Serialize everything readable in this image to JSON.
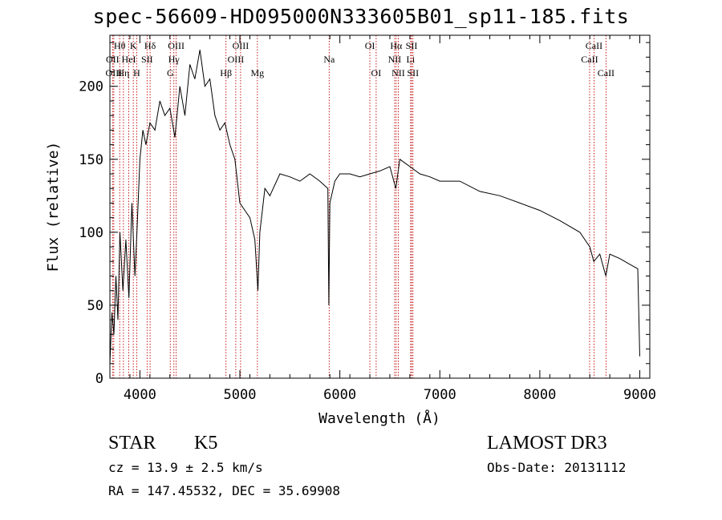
{
  "title": "spec-56609-HD095000N333605B01_sp11-185.fits",
  "info": {
    "class": "STAR",
    "subclass": "K5",
    "survey": "LAMOST DR3",
    "cz": "cz = 13.9 ± 2.5 km/s",
    "obs_date": "Obs-Date: 20131112",
    "radec": "RA = 147.45532, DEC =  35.69908"
  },
  "chart_data": {
    "type": "line",
    "title": "spec-56609-HD095000N333605B01_sp11-185.fits",
    "xlabel": "Wavelength (Å)",
    "ylabel": "Flux (relative)",
    "xlim": [
      3700,
      9100
    ],
    "ylim": [
      0,
      235
    ],
    "xticks": [
      4000,
      5000,
      6000,
      7000,
      8000,
      9000
    ],
    "yticks": [
      0,
      50,
      100,
      150,
      200
    ],
    "grid": false,
    "legend": "none",
    "series": [
      {
        "x": [
          3700,
          3720,
          3740,
          3760,
          3780,
          3800,
          3830,
          3860,
          3890,
          3920,
          3950,
          3970,
          4000,
          4030,
          4060,
          4100,
          4150,
          4200,
          4250,
          4300,
          4350,
          4400,
          4450,
          4500,
          4550,
          4600,
          4650,
          4700,
          4750,
          4800,
          4850,
          4900,
          4950,
          5000,
          5050,
          5100,
          5150,
          5180,
          5200,
          5250,
          5300,
          5400,
          5500,
          5600,
          5700,
          5800,
          5880,
          5890,
          5900,
          5950,
          6000,
          6100,
          6200,
          6300,
          6400,
          6500,
          6560,
          6600,
          6700,
          6800,
          6900,
          7000,
          7200,
          7400,
          7600,
          7800,
          8000,
          8200,
          8400,
          8500,
          8540,
          8600,
          8660,
          8700,
          8800,
          8900,
          8980,
          9000
        ],
        "values": [
          10,
          45,
          30,
          70,
          40,
          100,
          60,
          95,
          55,
          120,
          70,
          100,
          150,
          170,
          160,
          175,
          170,
          190,
          180,
          185,
          165,
          200,
          180,
          215,
          205,
          225,
          200,
          205,
          180,
          170,
          175,
          160,
          150,
          120,
          115,
          110,
          95,
          60,
          100,
          130,
          125,
          140,
          138,
          135,
          140,
          135,
          130,
          50,
          120,
          135,
          140,
          140,
          138,
          140,
          142,
          145,
          130,
          150,
          145,
          140,
          138,
          135,
          135,
          128,
          125,
          120,
          115,
          108,
          100,
          90,
          80,
          85,
          70,
          85,
          82,
          78,
          75,
          15
        ]
      }
    ],
    "annotations": [
      {
        "label": "Hθ",
        "x": 3798,
        "row": 1
      },
      {
        "label": "OII",
        "x": 3727,
        "row": 2
      },
      {
        "label": "OIII",
        "x": 3739,
        "row": 3
      },
      {
        "label": "K",
        "x": 3934,
        "row": 1
      },
      {
        "label": "HeI",
        "x": 3889,
        "row": 2
      },
      {
        "label": "Hη",
        "x": 3835,
        "row": 3
      },
      {
        "label": "Hδ",
        "x": 4102,
        "row": 1
      },
      {
        "label": "SII",
        "x": 4072,
        "row": 2
      },
      {
        "label": "H",
        "x": 3968,
        "row": 3
      },
      {
        "label": "OIII",
        "x": 4363,
        "row": 1
      },
      {
        "label": "Hγ",
        "x": 4340,
        "row": 2
      },
      {
        "label": "G",
        "x": 4304,
        "row": 3
      },
      {
        "label": "OIII",
        "x": 5007,
        "row": 1
      },
      {
        "label": "OIII",
        "x": 4959,
        "row": 2
      },
      {
        "label": "Hβ",
        "x": 4861,
        "row": 3
      },
      {
        "label": "Mg",
        "x": 5175,
        "row": 3
      },
      {
        "label": "Na",
        "x": 5893,
        "row": 2
      },
      {
        "label": "OI",
        "x": 6300,
        "row": 1
      },
      {
        "label": "OI",
        "x": 6363,
        "row": 3
      },
      {
        "label": "Hα",
        "x": 6563,
        "row": 1
      },
      {
        "label": "NII",
        "x": 6548,
        "row": 2
      },
      {
        "label": "NII",
        "x": 6584,
        "row": 3
      },
      {
        "label": "SII",
        "x": 6717,
        "row": 1
      },
      {
        "label": "Li",
        "x": 6708,
        "row": 2
      },
      {
        "label": "SII",
        "x": 6731,
        "row": 3
      },
      {
        "label": "CaII",
        "x": 8542,
        "row": 1
      },
      {
        "label": "CaII",
        "x": 8498,
        "row": 2
      },
      {
        "label": "CaII",
        "x": 8662,
        "row": 3
      }
    ]
  }
}
